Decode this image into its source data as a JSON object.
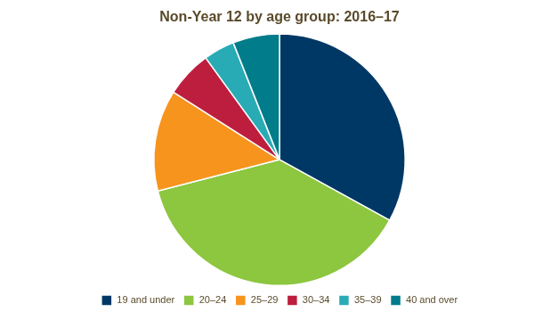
{
  "chart_data": {
    "type": "pie",
    "title": "Non-Year 12 by age group: 2016–17",
    "categories": [
      "19 and under",
      "20–24",
      "25–29",
      "30–34",
      "35–39",
      "40 and over"
    ],
    "values": [
      33,
      38,
      13,
      6,
      4,
      6
    ],
    "colors": [
      "#003865",
      "#8dc63f",
      "#f7941d",
      "#be1e3e",
      "#29abb5",
      "#007c8a"
    ],
    "legend": "bottom"
  }
}
